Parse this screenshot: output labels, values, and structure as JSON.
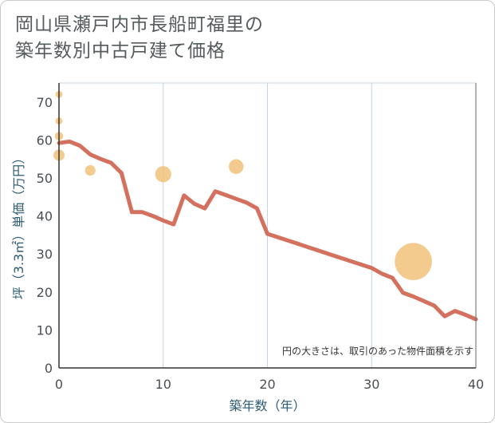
{
  "header": {
    "title_line1": "岡山県瀬戸内市長船町福里の",
    "title_line2": "築年数別中古戸建て価格"
  },
  "chart_data": {
    "type": "line",
    "xlabel": "築年数（年）",
    "ylabel": "坪（3.3㎡）単価（万円）",
    "xlim": [
      0,
      40
    ],
    "ylim": [
      0,
      75
    ],
    "x_ticks": [
      0,
      10,
      20,
      30,
      40
    ],
    "y_ticks": [
      0,
      10,
      20,
      30,
      40,
      50,
      60,
      70
    ],
    "grid": true,
    "note": "円の大きさは、取引のあった物件面積を示す",
    "colors": {
      "line": "#d4705e",
      "bubble": "#f2c27b",
      "grid": "#c5d4e0",
      "axis": "#333333"
    },
    "series": [
      {
        "type": "line",
        "x": [
          0,
          1,
          2,
          3,
          4,
          5,
          6,
          7,
          8,
          9,
          10,
          11,
          12,
          13,
          14,
          15,
          16,
          17,
          18,
          19,
          20,
          21,
          22,
          23,
          24,
          25,
          26,
          27,
          28,
          29,
          30,
          31,
          32,
          33,
          34,
          35,
          36,
          37,
          38,
          39,
          40
        ],
        "y": [
          59.2,
          59.6,
          58.5,
          56.2,
          55,
          54,
          51.3,
          41,
          41,
          40,
          38.8,
          37.8,
          45.4,
          43.2,
          42,
          46.5,
          45.5,
          44.5,
          43.5,
          42,
          35.3,
          34.4,
          33.5,
          32.6,
          31.7,
          30.8,
          29.9,
          29,
          28.1,
          27.2,
          26.3,
          24.8,
          23.7,
          19.8,
          18.8,
          17.6,
          16.4,
          13.6,
          15,
          14,
          12.8
        ]
      },
      {
        "type": "scatter",
        "points": [
          {
            "x": 0,
            "y": 72,
            "size": 1
          },
          {
            "x": 0,
            "y": 65,
            "size": 1
          },
          {
            "x": 0,
            "y": 61,
            "size": 1.2
          },
          {
            "x": 0,
            "y": 56,
            "size": 1.6
          },
          {
            "x": 3,
            "y": 52,
            "size": 1.5
          },
          {
            "x": 10,
            "y": 51,
            "size": 2.3
          },
          {
            "x": 17,
            "y": 53,
            "size": 2.1
          },
          {
            "x": 34,
            "y": 28,
            "size": 5.3
          }
        ]
      }
    ]
  }
}
